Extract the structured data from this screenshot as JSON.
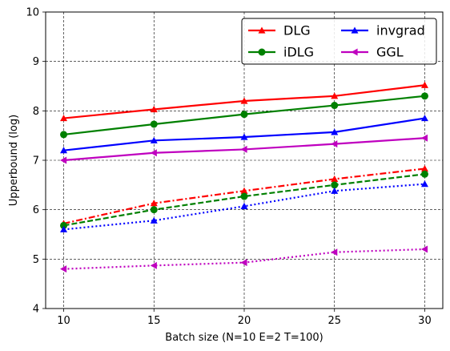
{
  "chart_data": {
    "type": "line",
    "title": "",
    "xlabel": "Batch size (N=10 E=2 T=100)",
    "ylabel": "Upperbound (log)",
    "x": [
      10,
      15,
      20,
      25,
      30
    ],
    "xlim": [
      9,
      31
    ],
    "ylim": [
      4,
      10
    ],
    "xticks": [
      "10",
      "15",
      "20",
      "25",
      "30"
    ],
    "yticks": [
      "4",
      "5",
      "6",
      "7",
      "8",
      "9",
      "10"
    ],
    "grid": true,
    "legend_position": "top-right",
    "legend": [
      "DLG",
      "iDLG",
      "invgrad",
      "GGL"
    ],
    "series": [
      {
        "name": "DLG",
        "group": "DLG",
        "color": "#ff0000",
        "marker": "triangle-up",
        "style": "solid",
        "values": [
          7.85,
          8.03,
          8.2,
          8.3,
          8.52
        ]
      },
      {
        "name": "iDLG",
        "group": "iDLG",
        "color": "#008000",
        "marker": "circle",
        "style": "solid",
        "values": [
          7.52,
          7.73,
          7.93,
          8.11,
          8.3
        ]
      },
      {
        "name": "invgrad",
        "group": "invgrad",
        "color": "#0000ff",
        "marker": "triangle-up",
        "style": "solid",
        "values": [
          7.2,
          7.4,
          7.47,
          7.57,
          7.85
        ]
      },
      {
        "name": "GGL",
        "group": "GGL",
        "color": "#bf00bf",
        "marker": "triangle-left",
        "style": "solid",
        "values": [
          7.0,
          7.15,
          7.22,
          7.33,
          7.45
        ]
      },
      {
        "group": "DLG",
        "color": "#ff0000",
        "marker": "triangle-up",
        "style": "dashdot",
        "values": [
          5.72,
          6.13,
          6.38,
          6.62,
          6.83
        ]
      },
      {
        "group": "iDLG",
        "color": "#008000",
        "marker": "circle",
        "style": "dashed",
        "values": [
          5.68,
          6.0,
          6.27,
          6.5,
          6.72
        ]
      },
      {
        "group": "invgrad",
        "color": "#0000ff",
        "marker": "triangle-up",
        "style": "dotted",
        "values": [
          5.6,
          5.78,
          6.07,
          6.38,
          6.52
        ]
      },
      {
        "group": "GGL",
        "color": "#bf00bf",
        "marker": "triangle-left",
        "style": "dotted",
        "values": [
          4.8,
          4.87,
          4.93,
          5.14,
          5.2
        ]
      }
    ]
  }
}
